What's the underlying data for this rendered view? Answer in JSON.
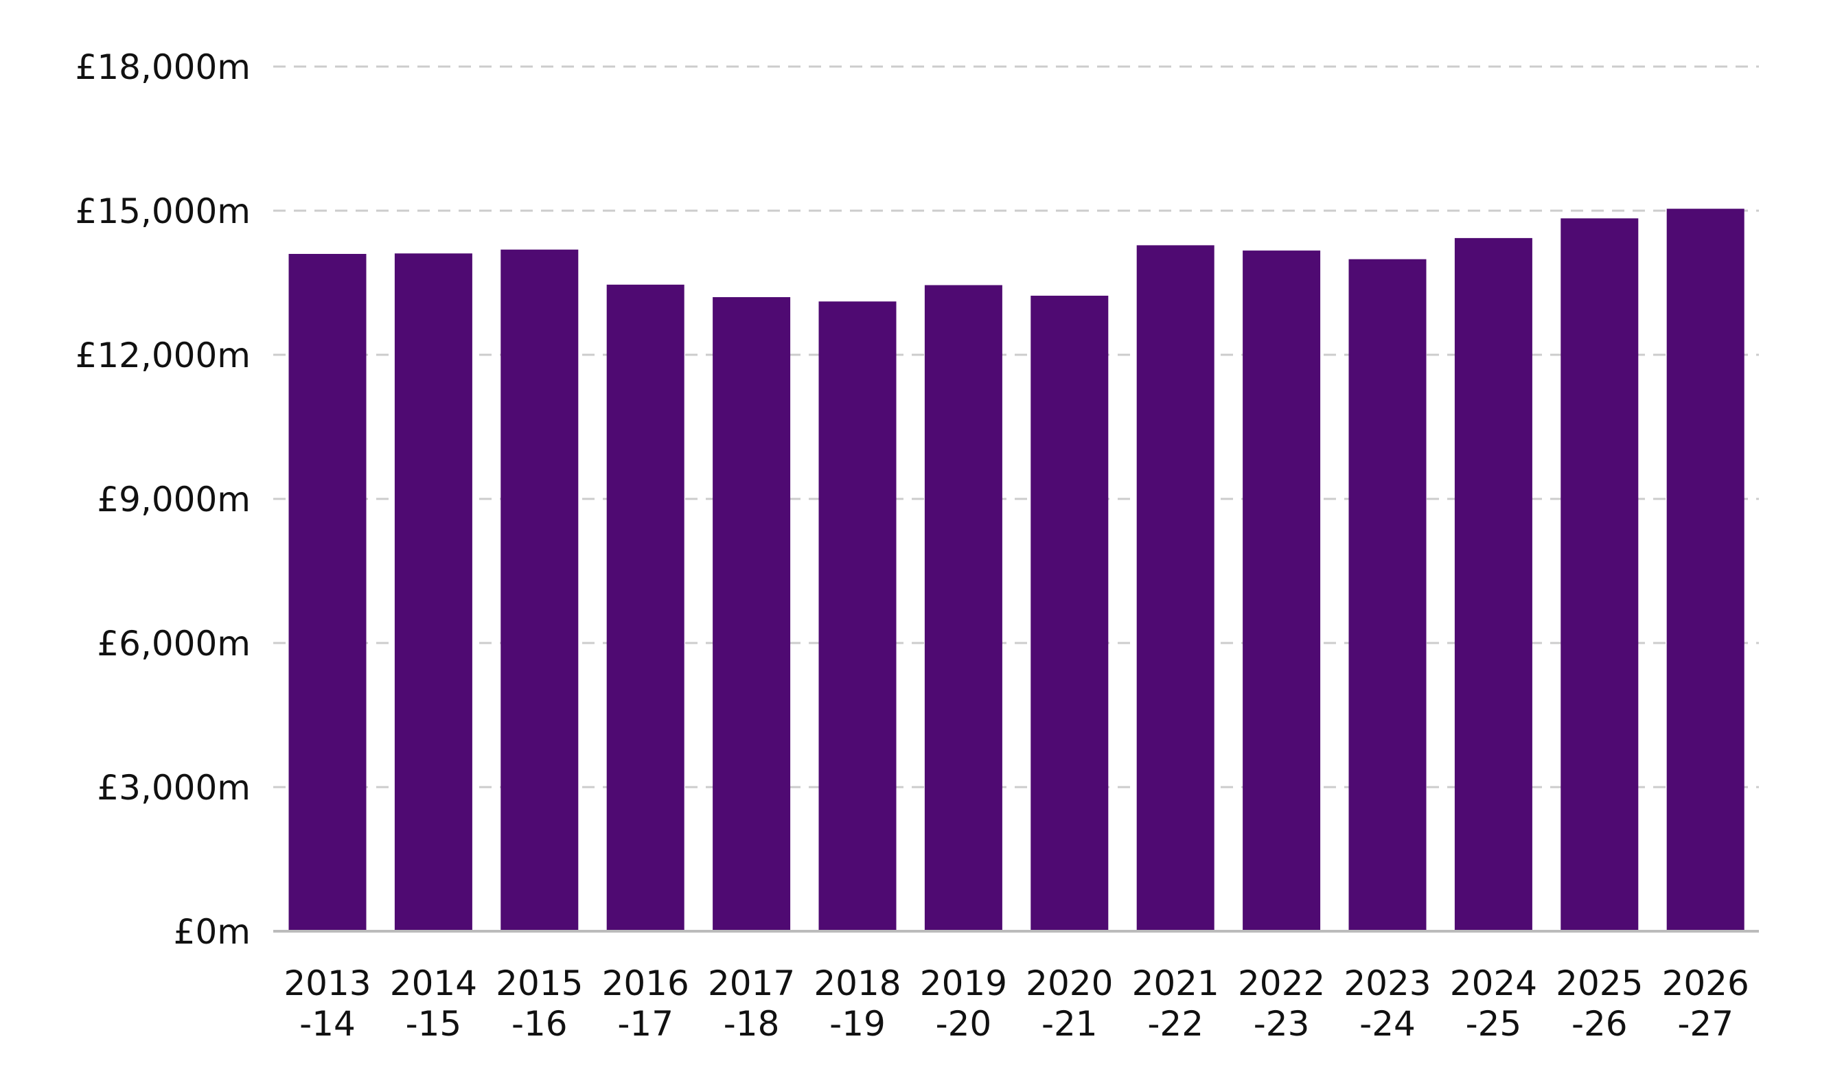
{
  "chart_data": {
    "type": "bar",
    "title": "",
    "xlabel": "",
    "ylabel": "",
    "categories": [
      [
        "2013",
        "-14"
      ],
      [
        "2014",
        "-15"
      ],
      [
        "2015",
        "-16"
      ],
      [
        "2016",
        "-17"
      ],
      [
        "2017",
        "-18"
      ],
      [
        "2018",
        "-19"
      ],
      [
        "2019",
        "-20"
      ],
      [
        "2020",
        "-21"
      ],
      [
        "2021",
        "-22"
      ],
      [
        "2022",
        "-23"
      ],
      [
        "2023",
        "-24"
      ],
      [
        "2024",
        "-25"
      ],
      [
        "2025",
        "-26"
      ],
      [
        "2026",
        "-27"
      ]
    ],
    "values": [
      14100,
      14110,
      14190,
      13460,
      13200,
      13110,
      13450,
      13230,
      14280,
      14170,
      13990,
      14430,
      14840,
      15040
    ],
    "ylim": [
      0,
      18000
    ],
    "yticks": [
      0,
      3000,
      6000,
      9000,
      12000,
      15000,
      18000
    ],
    "ytick_labels": [
      "£0m",
      "£3,000m",
      "£6,000m",
      "£9,000m",
      "£12,000m",
      "£15,000m",
      "£18,000m"
    ],
    "grid": true,
    "bar_color": "#4f0a72",
    "grid_color": "#cccccc"
  }
}
